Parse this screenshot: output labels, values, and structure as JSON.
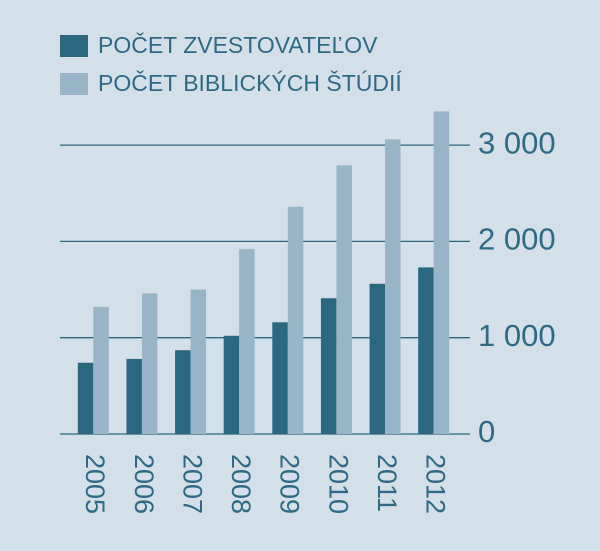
{
  "chart_data": {
    "type": "bar",
    "categories": [
      "2005",
      "2006",
      "2007",
      "2008",
      "2009",
      "2010",
      "2011",
      "2012"
    ],
    "series": [
      {
        "name": "POČET ZVESTOVATEĽOV",
        "color": "#2c6780",
        "values": [
          740,
          780,
          870,
          1020,
          1160,
          1410,
          1560,
          1730
        ]
      },
      {
        "name": "POČET BIBLICKÝCH ŠTÚDIÍ",
        "color": "#97b5c7",
        "values": [
          1320,
          1460,
          1500,
          1920,
          2360,
          2790,
          3060,
          3350
        ]
      }
    ],
    "ylim": [
      0,
      3400
    ],
    "yticks": [
      0,
      {
        "value": 1000,
        "label": "1 000"
      },
      {
        "value": 2000,
        "label": "2 000"
      },
      {
        "value": 3000,
        "label": "3 000"
      }
    ],
    "grid": true
  }
}
